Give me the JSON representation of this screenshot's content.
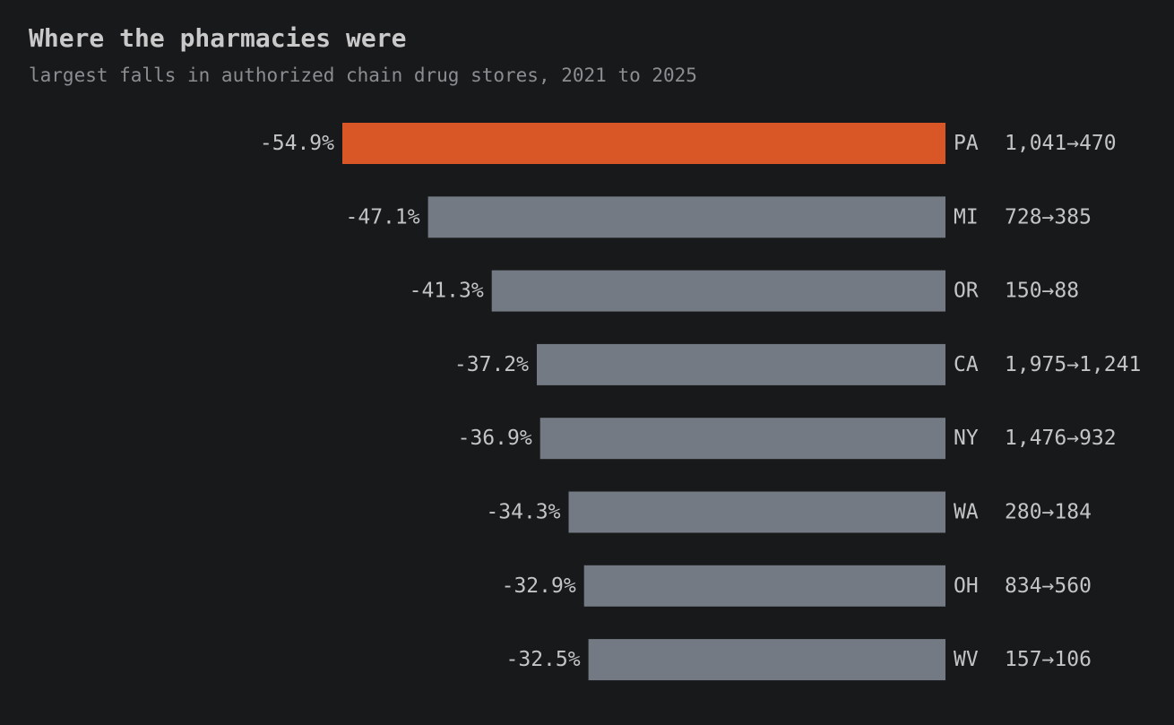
{
  "chart_data": {
    "type": "bar",
    "orientation": "horizontal",
    "title": "Where the pharmacies were",
    "subtitle": "largest falls in authorized chain drug stores, 2021 to 2025",
    "xlim": [
      -54.9,
      0
    ],
    "highlight_color": "#d95627",
    "bar_color": "#747a83",
    "rows": [
      {
        "state": "PA",
        "pct": -54.9,
        "pct_label": "-54.9%",
        "counts": "1,041→470",
        "highlight": true
      },
      {
        "state": "MI",
        "pct": -47.1,
        "pct_label": "-47.1%",
        "counts": "728→385",
        "highlight": false
      },
      {
        "state": "OR",
        "pct": -41.3,
        "pct_label": "-41.3%",
        "counts": "150→88",
        "highlight": false
      },
      {
        "state": "CA",
        "pct": -37.2,
        "pct_label": "-37.2%",
        "counts": "1,975→1,241",
        "highlight": false
      },
      {
        "state": "NY",
        "pct": -36.9,
        "pct_label": "-36.9%",
        "counts": "1,476→932",
        "highlight": false
      },
      {
        "state": "WA",
        "pct": -34.3,
        "pct_label": "-34.3%",
        "counts": "280→184",
        "highlight": false
      },
      {
        "state": "OH",
        "pct": -32.9,
        "pct_label": "-32.9%",
        "counts": "834→560",
        "highlight": false
      },
      {
        "state": "WV",
        "pct": -32.5,
        "pct_label": "-32.5%",
        "counts": "157→106",
        "highlight": false
      }
    ]
  }
}
